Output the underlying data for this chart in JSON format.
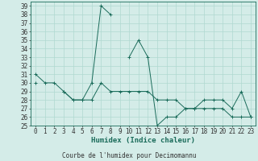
{
  "title": "Courbe de l'humidex pour Decimomannu",
  "xlabel": "Humidex (Indice chaleur)",
  "bg_color": "#d4ece8",
  "line_color": "#1a6b5a",
  "grid_color": "#b0d8d0",
  "x_values": [
    0,
    1,
    2,
    3,
    4,
    5,
    6,
    7,
    8,
    9,
    10,
    11,
    12,
    13,
    14,
    15,
    16,
    17,
    18,
    19,
    20,
    21,
    22,
    23
  ],
  "series1": [
    31,
    30,
    30,
    29,
    28,
    28,
    30,
    39,
    38,
    null,
    33,
    35,
    33,
    25,
    26,
    26,
    27,
    27,
    28,
    28,
    28,
    27,
    29,
    26
  ],
  "series2": [
    30,
    null,
    null,
    29,
    28,
    28,
    28,
    30,
    29,
    29,
    29,
    29,
    29,
    28,
    28,
    28,
    27,
    27,
    27,
    27,
    27,
    26,
    26,
    26
  ],
  "ylim": [
    25,
    39
  ],
  "yticks": [
    25,
    26,
    27,
    28,
    29,
    30,
    31,
    32,
    33,
    34,
    35,
    36,
    37,
    38,
    39
  ],
  "xticks": [
    0,
    1,
    2,
    3,
    4,
    5,
    6,
    7,
    8,
    9,
    10,
    11,
    12,
    13,
    14,
    15,
    16,
    17,
    18,
    19,
    20,
    21,
    22,
    23
  ],
  "tick_fontsize": 5.5,
  "label_fontsize": 6.5
}
